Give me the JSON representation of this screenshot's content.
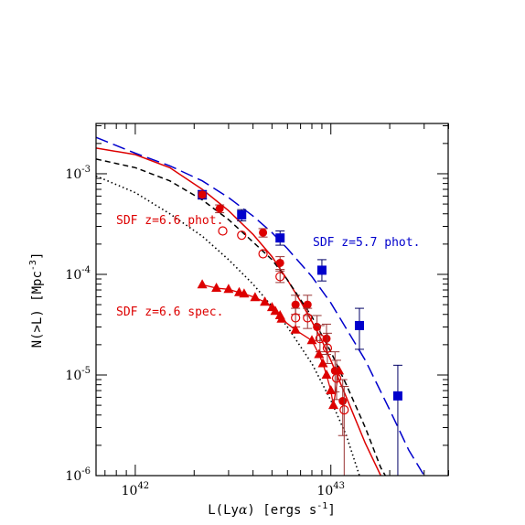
{
  "chart_data": {
    "type": "scatter",
    "xscale": "log",
    "yscale": "log",
    "xlim": [
      6.3e+41,
      3.98e+43
    ],
    "ylim": [
      1e-06,
      0.00316
    ],
    "xlabel_main": "L(Ly",
    "xlabel_greek": "α",
    "xlabel_rest": ") [ergs s",
    "xlabel_sup": "-1",
    "xlabel_close": "]",
    "ylabel_main": "N(>L) [Mpc",
    "ylabel_sup": "-3",
    "ylabel_close": "]",
    "xticks": [
      {
        "value": 1e+42,
        "base": "10",
        "exp": "42"
      },
      {
        "value": 1e+43,
        "base": "10",
        "exp": "43"
      }
    ],
    "yticks": [
      {
        "value": 0.001,
        "base": "10",
        "exp": "-3"
      },
      {
        "value": 0.0001,
        "base": "10",
        "exp": "-4"
      },
      {
        "value": 1e-05,
        "base": "10",
        "exp": "-5"
      },
      {
        "value": 1e-06,
        "base": "10",
        "exp": "-6"
      }
    ],
    "annotations": [
      {
        "text": "SDF z=6.6 phot.",
        "color": "#dd0000"
      },
      {
        "text": "SDF z=5.7 phot.",
        "color": "#0000cc"
      },
      {
        "text": "SDF z=6.6 spec.",
        "color": "#dd0000"
      }
    ],
    "colors": {
      "red": "#dd0000",
      "blue": "#0000cc",
      "errred": "#993333",
      "errblue": "#000066"
    },
    "series": [
      {
        "marker": "square",
        "color": "#0000cc",
        "points": [
          {
            "x": 2.2e+42,
            "y": 0.00062,
            "ylo": 0.00056,
            "yhi": 0.00068
          },
          {
            "x": 3.5e+42,
            "y": 0.00039,
            "ylo": 0.00034,
            "yhi": 0.00044
          },
          {
            "x": 5.5e+42,
            "y": 0.00023,
            "ylo": 0.000195,
            "yhi": 0.00027
          },
          {
            "x": 9e+42,
            "y": 0.00011,
            "ylo": 8.6e-05,
            "yhi": 0.00014
          },
          {
            "x": 1.4e+43,
            "y": 3.1e-05,
            "ylo": 1.8e-05,
            "yhi": 4.6e-05
          },
          {
            "x": 2.2e+43,
            "y": 6.2e-06,
            "ylo": 1e-06,
            "yhi": 1.25e-05
          }
        ]
      },
      {
        "marker": "filled-circle",
        "color": "#dd0000",
        "points": [
          {
            "x": 2.2e+42,
            "y": 0.00062,
            "ylo": 0.00058,
            "yhi": 0.00066
          },
          {
            "x": 2.7e+42,
            "y": 0.00045,
            "ylo": 0.00041,
            "yhi": 0.00049
          },
          {
            "x": 4.5e+42,
            "y": 0.00026,
            "ylo": 0.000235,
            "yhi": 0.000285
          },
          {
            "x": 5.5e+42,
            "y": 0.00013,
            "ylo": 0.000112,
            "yhi": 0.00015
          },
          {
            "x": 6.6e+42,
            "y": 5e-05,
            "ylo": 4e-05,
            "yhi": 6.2e-05
          },
          {
            "x": 7.6e+42,
            "y": 5e-05,
            "ylo": 3.9e-05,
            "yhi": 6.2e-05
          },
          {
            "x": 8.5e+42,
            "y": 3e-05,
            "ylo": 2.2e-05,
            "yhi": 3.9e-05
          },
          {
            "x": 9.5e+42,
            "y": 2.3e-05,
            "ylo": 1.6e-05,
            "yhi": 3.2e-05
          },
          {
            "x": 1.05e+43,
            "y": 1.1e-05,
            "ylo": 6.8e-06,
            "yhi": 1.7e-05
          },
          {
            "x": 1.15e+43,
            "y": 5.5e-06,
            "ylo": 2.5e-06,
            "yhi": 9e-06
          }
        ]
      },
      {
        "marker": "open-circle",
        "color": "#dd0000",
        "points": [
          {
            "x": 2.8e+42,
            "y": 0.00027
          },
          {
            "x": 3.5e+42,
            "y": 0.000245
          },
          {
            "x": 4.5e+42,
            "y": 0.00016
          },
          {
            "x": 5.5e+42,
            "y": 9.5e-05,
            "ylo": 8.3e-05,
            "yhi": 0.000108
          },
          {
            "x": 6.6e+42,
            "y": 3.7e-05,
            "ylo": 3e-05,
            "yhi": 4.6e-05
          },
          {
            "x": 7.6e+42,
            "y": 3.7e-05,
            "ylo": 2.9e-05,
            "yhi": 4.6e-05
          },
          {
            "x": 8.8e+42,
            "y": 2.3e-05,
            "ylo": 1.7e-05,
            "yhi": 3.1e-05
          },
          {
            "x": 9.6e+42,
            "y": 1.85e-05,
            "ylo": 1.3e-05,
            "yhi": 2.6e-05
          },
          {
            "x": 1.07e+43,
            "y": 9.3e-06,
            "ylo": 5.7e-06,
            "yhi": 1.4e-05
          },
          {
            "x": 1.17e+43,
            "y": 4.5e-06,
            "ylo": 1e-06,
            "yhi": 7.7e-06
          }
        ]
      },
      {
        "marker": "triangle",
        "color": "#dd0000",
        "points": [
          {
            "x": 2.2e+42,
            "y": 7.9e-05
          },
          {
            "x": 2.6e+42,
            "y": 7.3e-05
          },
          {
            "x": 3e+42,
            "y": 7.1e-05
          },
          {
            "x": 3.4e+42,
            "y": 6.6e-05
          },
          {
            "x": 3.6e+42,
            "y": 6.4e-05
          },
          {
            "x": 4.1e+42,
            "y": 5.9e-05
          },
          {
            "x": 4.6e+42,
            "y": 5.3e-05
          },
          {
            "x": 5e+42,
            "y": 4.7e-05
          },
          {
            "x": 5.2e+42,
            "y": 4.3e-05
          },
          {
            "x": 5.5e+42,
            "y": 3.9e-05
          },
          {
            "x": 5.6e+42,
            "y": 3.6e-05
          },
          {
            "x": 6.6e+42,
            "y": 2.8e-05
          },
          {
            "x": 8e+42,
            "y": 2.2e-05
          },
          {
            "x": 8.7e+42,
            "y": 1.6e-05
          },
          {
            "x": 9.1e+42,
            "y": 1.3e-05
          },
          {
            "x": 9.5e+42,
            "y": 1e-05
          },
          {
            "x": 1e+43,
            "y": 7e-06
          },
          {
            "x": 1.03e+43,
            "y": 5e-06
          },
          {
            "x": 1.1e+43,
            "y": 1.1e-05
          }
        ]
      }
    ],
    "curves": [
      {
        "name": "red-solid-schechter",
        "style": "solid",
        "color": "#dd0000",
        "points": [
          [
            6.3e+41,
            0.0018
          ],
          [
            1e+42,
            0.00155
          ],
          [
            1.5e+42,
            0.00115
          ],
          [
            2.2e+42,
            0.0007
          ],
          [
            3e+42,
            0.00043
          ],
          [
            4e+42,
            0.00025
          ],
          [
            5e+42,
            0.00015
          ],
          [
            6e+42,
            8.8e-05
          ],
          [
            7e+42,
            5.4e-05
          ],
          [
            8e+42,
            3.4e-05
          ],
          [
            9e+42,
            2.2e-05
          ],
          [
            1e+43,
            1.4e-05
          ],
          [
            1.2e+43,
            6e-06
          ],
          [
            1.5e+43,
            2.1e-06
          ],
          [
            1.8e+43,
            1e-06
          ]
        ]
      },
      {
        "name": "blue-dashed-schechter",
        "style": "longdash",
        "color": "#0000cc",
        "points": [
          [
            6.3e+41,
            0.0023
          ],
          [
            1e+42,
            0.0016
          ],
          [
            1.5e+42,
            0.0012
          ],
          [
            2.2e+42,
            0.00085
          ],
          [
            3e+42,
            0.00058
          ],
          [
            4e+42,
            0.00038
          ],
          [
            5e+42,
            0.00026
          ],
          [
            6e+42,
            0.00018
          ],
          [
            8e+42,
            9.5e-05
          ],
          [
            1e+43,
            5.2e-05
          ],
          [
            1.5e+43,
            1.4e-05
          ],
          [
            2e+43,
            4.5e-06
          ],
          [
            2.5e+43,
            1.8e-06
          ],
          [
            3e+43,
            1e-06
          ]
        ]
      },
      {
        "name": "black-dashed-schechter",
        "style": "dash",
        "color": "#000000",
        "points": [
          [
            6.3e+41,
            0.0014
          ],
          [
            1e+42,
            0.00115
          ],
          [
            1.5e+42,
            0.00085
          ],
          [
            2.2e+42,
            0.00055
          ],
          [
            3e+42,
            0.00035
          ],
          [
            4e+42,
            0.00021
          ],
          [
            5e+42,
            0.00014
          ],
          [
            6e+42,
            8.8e-05
          ],
          [
            8e+42,
            3.8e-05
          ],
          [
            1e+43,
            1.7e-05
          ],
          [
            1.2e+43,
            8e-06
          ],
          [
            1.5e+43,
            3e-06
          ],
          [
            1.8e+43,
            1.2e-06
          ],
          [
            1.9e+43,
            1e-06
          ]
        ]
      },
      {
        "name": "black-dotted-schechter",
        "style": "dot",
        "color": "#000000",
        "points": [
          [
            6.3e+41,
            0.00095
          ],
          [
            1e+42,
            0.00065
          ],
          [
            1.5e+42,
            0.0004
          ],
          [
            2.2e+42,
            0.00024
          ],
          [
            3e+42,
            0.00014
          ],
          [
            4e+42,
            8e-05
          ],
          [
            5e+42,
            4.8e-05
          ],
          [
            6e+42,
            3e-05
          ],
          [
            8e+42,
            1.3e-05
          ],
          [
            1e+43,
            5.6e-06
          ],
          [
            1.2e+43,
            2.5e-06
          ],
          [
            1.4e+43,
            1e-06
          ]
        ]
      }
    ]
  }
}
